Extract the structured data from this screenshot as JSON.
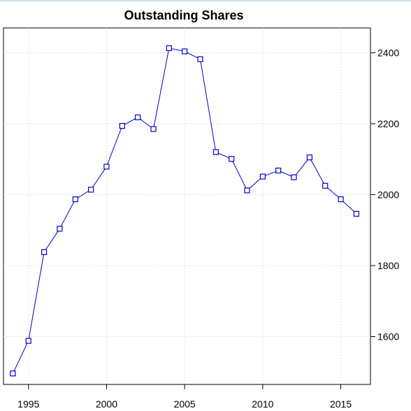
{
  "chart_data": {
    "type": "line",
    "title": "Outstanding Shares",
    "xlabel": "",
    "ylabel": "",
    "x": [
      1994,
      1995,
      1996,
      1997,
      1998,
      1999,
      2000,
      2001,
      2002,
      2003,
      2004,
      2005,
      2006,
      2007,
      2008,
      2009,
      2010,
      2011,
      2012,
      2013,
      2014,
      2015,
      2016
    ],
    "series": [
      {
        "values": [
          1496,
          1588,
          1838,
          1904,
          1987,
          2014,
          2079,
          2194,
          2218,
          2185,
          2413,
          2404,
          2382,
          2120,
          2101,
          2012,
          2051,
          2068,
          2049,
          2105,
          2025,
          1987,
          1946
        ],
        "color": "#0000cc"
      }
    ],
    "xlim": [
      1993.4,
      2016.9
    ],
    "ylim": [
      1465,
      2470
    ],
    "x_ticks": [
      "1995",
      "2000",
      "2005",
      "2010",
      "2015"
    ],
    "y_ticks": [
      "1600",
      "1800",
      "2000",
      "2200",
      "2400"
    ],
    "y_axis_side": "right",
    "grid": true,
    "marker": "open-square"
  }
}
